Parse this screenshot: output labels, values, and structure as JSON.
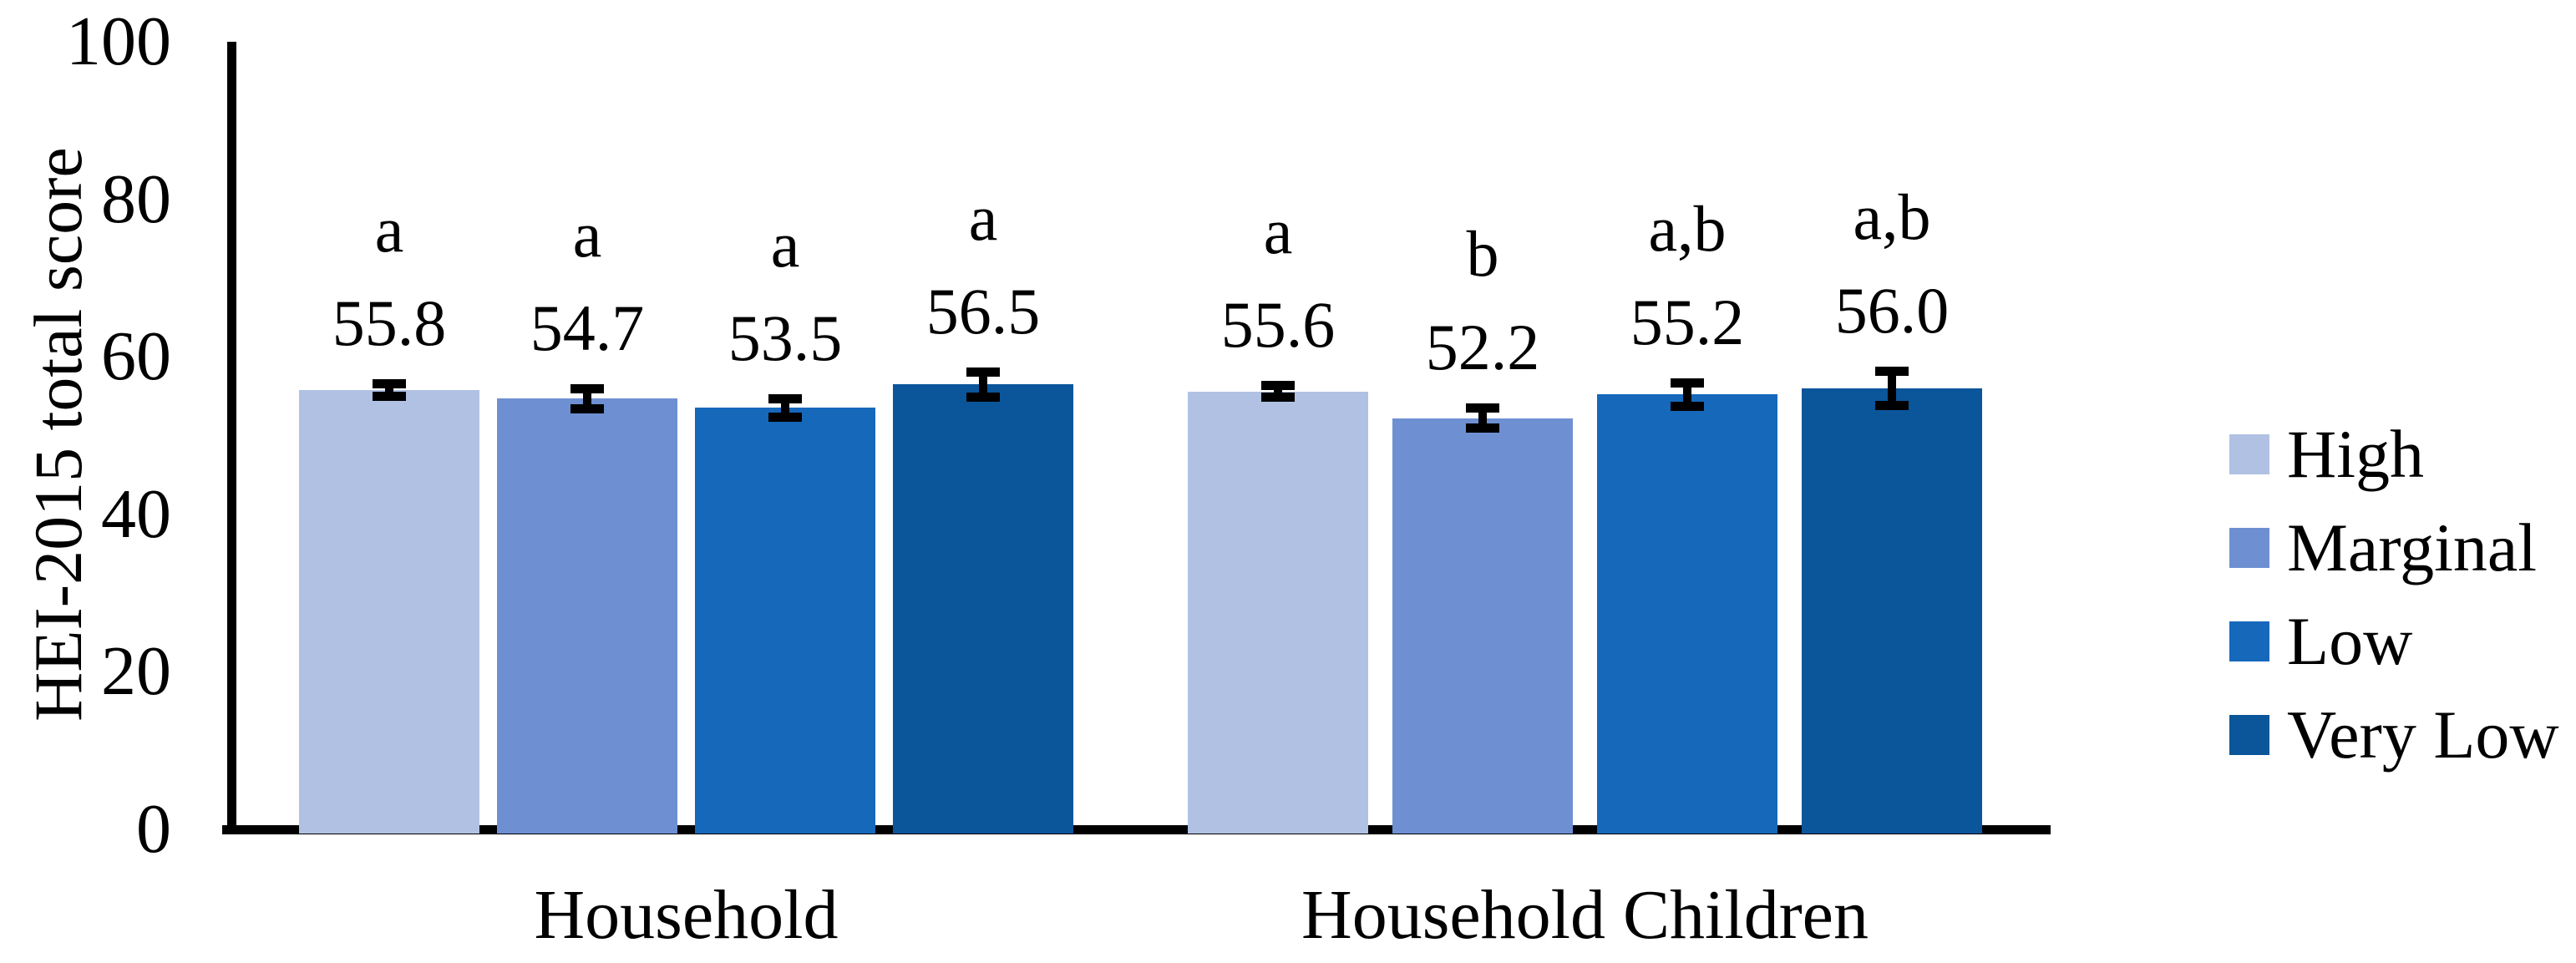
{
  "figure": {
    "background_color": "#ffffff",
    "text_color": "#000000",
    "axis_color": "#000000",
    "error_bar_color": "#000000"
  },
  "chart_data": {
    "type": "bar",
    "title": "",
    "xlabel": "",
    "ylabel": "HEI-2015 total score",
    "ylim": [
      0,
      100
    ],
    "yticks": [
      0,
      20,
      40,
      60,
      80,
      100
    ],
    "grid": false,
    "legend_position": "right",
    "categories": [
      "Household",
      "Household Children"
    ],
    "series": [
      {
        "name": "High",
        "color": "#B0C1E3",
        "values": [
          55.8,
          55.6
        ],
        "errors": [
          0.4,
          0.4
        ],
        "sig_labels": [
          "a",
          "a"
        ]
      },
      {
        "name": "Marginal",
        "color": "#6E90D2",
        "values": [
          54.7,
          52.2
        ],
        "errors": [
          0.9,
          0.9
        ],
        "sig_labels": [
          "a",
          "b"
        ]
      },
      {
        "name": "Low",
        "color": "#1668BB",
        "values": [
          53.5,
          55.2
        ],
        "errors": [
          0.8,
          1.1
        ],
        "sig_labels": [
          "a",
          "a,b"
        ]
      },
      {
        "name": "Very Low",
        "color": "#0B559B",
        "values": [
          56.5,
          56.0
        ],
        "errors": [
          1.2,
          1.8
        ],
        "sig_labels": [
          "a",
          "a,b"
        ]
      }
    ],
    "bar_value_labels": [
      [
        "55.8",
        "54.7",
        "53.5",
        "56.5"
      ],
      [
        "55.6",
        "52.2",
        "55.2",
        "56.0"
      ]
    ],
    "significance_letters": [
      [
        "a",
        "a",
        "a",
        "a"
      ],
      [
        "a",
        "b",
        "a,b",
        "a,b"
      ]
    ],
    "legend_labels": [
      "High",
      "Marginal",
      "Low",
      "Very Low"
    ]
  }
}
